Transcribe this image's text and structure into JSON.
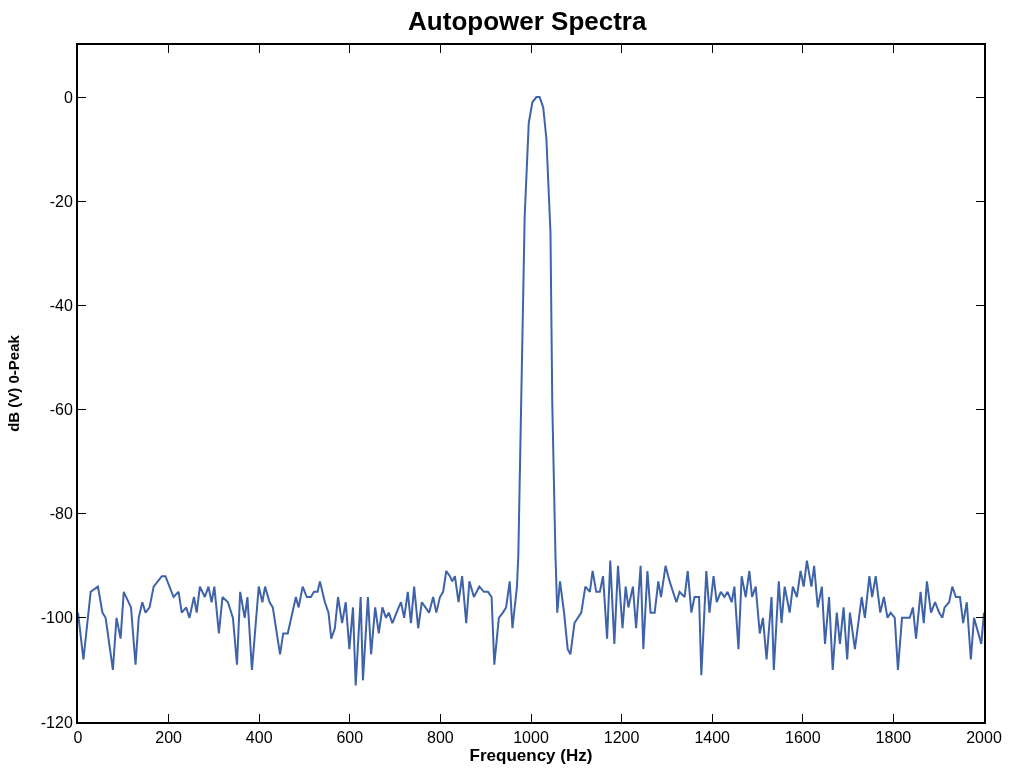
{
  "chart_data": {
    "type": "line",
    "title": "Autopower Spectra",
    "xlabel": "Frequency (Hz)",
    "ylabel": "dB (V) 0-Peak",
    "xlim": [
      0,
      2000
    ],
    "xticks": [
      0,
      200,
      400,
      600,
      800,
      1000,
      1200,
      1400,
      1600,
      1800,
      2000
    ],
    "ylim": [
      -120,
      10
    ],
    "yticks": [
      -120,
      -100,
      -80,
      -60,
      -40,
      -20,
      0
    ],
    "marker": "none",
    "line_style": "solid",
    "series": [
      {
        "color": "#3f63a8",
        "x": [
          0,
          12,
          28,
          44,
          54,
          61,
          77,
          85,
          94,
          101,
          117,
          127,
          134,
          142,
          149,
          158,
          167,
          185,
          193,
          211,
          222,
          229,
          239,
          246,
          256,
          262,
          269,
          280,
          288,
          295,
          301,
          311,
          319,
          331,
          342,
          351,
          358,
          368,
          374,
          384,
          399,
          407,
          413,
          423,
          430,
          446,
          453,
          463,
          481,
          487,
          496,
          505,
          514,
          521,
          529,
          534,
          545,
          553,
          559,
          567,
          574,
          583,
          591,
          599,
          607,
          613,
          624,
          629,
          640,
          647,
          656,
          664,
          672,
          680,
          686,
          694,
          708,
          713,
          720,
          728,
          735,
          742,
          751,
          759,
          767,
          775,
          784,
          791,
          799,
          806,
          813,
          821,
          826,
          832,
          840,
          848,
          857,
          864,
          874,
          886,
          896,
          905,
          913,
          919,
          929,
          938,
          945,
          953,
          959,
          969,
          972,
          986,
          995,
          1003,
          1012,
          1019,
          1027,
          1034,
          1043,
          1047,
          1054,
          1058,
          1064,
          1073,
          1081,
          1087,
          1096,
          1111,
          1120,
          1130,
          1136,
          1144,
          1152,
          1159,
          1168,
          1175,
          1184,
          1192,
          1202,
          1209,
          1215,
          1225,
          1232,
          1242,
          1248,
          1257,
          1264,
          1273,
          1281,
          1287,
          1297,
          1306,
          1321,
          1328,
          1339,
          1346,
          1354,
          1361,
          1371,
          1376,
          1387,
          1394,
          1403,
          1410,
          1419,
          1427,
          1434,
          1443,
          1449,
          1458,
          1465,
          1474,
          1482,
          1488,
          1496,
          1505,
          1512,
          1520,
          1531,
          1536,
          1547,
          1553,
          1560,
          1571,
          1578,
          1587,
          1595,
          1602,
          1609,
          1619,
          1625,
          1633,
          1642,
          1649,
          1658,
          1666,
          1675,
          1682,
          1690,
          1698,
          1704,
          1715,
          1730,
          1737,
          1747,
          1753,
          1761,
          1771,
          1779,
          1787,
          1794,
          1803,
          1810,
          1819,
          1828,
          1836,
          1843,
          1850,
          1860,
          1867,
          1874,
          1883,
          1892,
          1901,
          1908,
          1913,
          1923,
          1930,
          1938,
          1947,
          1954,
          1962,
          1971,
          1978,
          1994,
          2000
        ],
        "values": [
          -99,
          -108,
          -95,
          -94,
          -99,
          -100,
          -110,
          -100,
          -104,
          -95,
          -98,
          -109,
          -100,
          -97,
          -99,
          -98,
          -94,
          -92,
          -92,
          -96,
          -95,
          -99,
          -98,
          -100,
          -96,
          -99,
          -94,
          -96,
          -94,
          -97,
          -94,
          -103,
          -96,
          -97,
          -100,
          -109,
          -95,
          -100,
          -96,
          -110,
          -94,
          -97,
          -94,
          -97,
          -98,
          -107,
          -103,
          -103,
          -96,
          -98,
          -94,
          -96,
          -96,
          -95,
          -95,
          -93,
          -97,
          -99,
          -104,
          -102,
          -96,
          -101,
          -97,
          -106,
          -98,
          -113,
          -96,
          -112,
          -96,
          -107,
          -98,
          -103,
          -98,
          -100,
          -99,
          -101,
          -98,
          -97,
          -100,
          -95,
          -101,
          -94,
          -102,
          -97,
          -98,
          -99,
          -96,
          -99,
          -96,
          -95,
          -91,
          -92,
          -93,
          -92,
          -97,
          -92,
          -101,
          -93,
          -96,
          -94,
          -95,
          -95,
          -96,
          -109,
          -100,
          -99,
          -98,
          -93,
          -102,
          -94,
          -88,
          -23,
          -5,
          -1,
          0,
          0,
          -2,
          -8,
          -26,
          -59,
          -88,
          -99,
          -93,
          -99,
          -106,
          -107,
          -101,
          -99,
          -94,
          -95,
          -91,
          -95,
          -95,
          -92,
          -104,
          -89,
          -105,
          -90,
          -102,
          -94,
          -98,
          -94,
          -102,
          -90,
          -106,
          -91,
          -99,
          -99,
          -93,
          -96,
          -90,
          -93,
          -97,
          -95,
          -96,
          -91,
          -99,
          -96,
          -96,
          -111,
          -91,
          -99,
          -92,
          -97,
          -95,
          -96,
          -95,
          -97,
          -94,
          -106,
          -92,
          -96,
          -91,
          -96,
          -94,
          -103,
          -100,
          -108,
          -96,
          -110,
          -93,
          -101,
          -94,
          -99,
          -94,
          -96,
          -91,
          -94,
          -89,
          -94,
          -90,
          -98,
          -94,
          -105,
          -96,
          -110,
          -99,
          -105,
          -98,
          -108,
          -99,
          -106,
          -96,
          -100,
          -92,
          -96,
          -92,
          -99,
          -96,
          -100,
          -99,
          -100,
          -110,
          -100,
          -100,
          -100,
          -98,
          -104,
          -95,
          -101,
          -93,
          -99,
          -97,
          -99,
          -100,
          -98,
          -97,
          -94,
          -96,
          -96,
          -101,
          -97,
          -108,
          -100,
          -105,
          -99
        ]
      }
    ]
  }
}
